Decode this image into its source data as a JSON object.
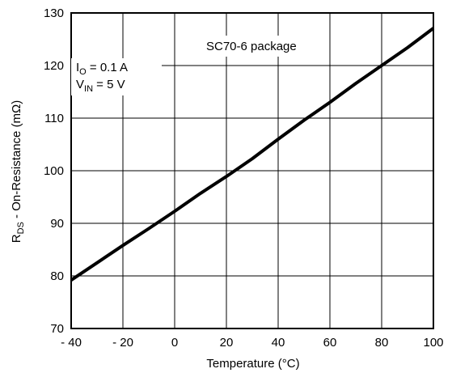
{
  "chart_data": {
    "type": "line",
    "title": "",
    "xlabel": "Temperature (°C)",
    "ylabel": {
      "prefix": "R",
      "sub": "DS",
      "suffix": " - On-Resistance (mΩ)"
    },
    "xlim": [
      -40,
      100
    ],
    "ylim": [
      70,
      130
    ],
    "xticks": [
      -40,
      -20,
      0,
      20,
      40,
      60,
      80,
      100
    ],
    "xtick_labels": [
      "- 40",
      "- 20",
      "0",
      "20",
      "40",
      "60",
      "80",
      "100"
    ],
    "yticks": [
      70,
      80,
      90,
      100,
      110,
      120,
      130
    ],
    "ytick_labels": [
      "70",
      "80",
      "90",
      "100",
      "110",
      "120",
      "130"
    ],
    "grid": true,
    "legend": "none",
    "annotations": {
      "package": "SC70-6 package",
      "io": {
        "prefix": "I",
        "sub": "O",
        "suffix": " = 0.1 A"
      },
      "vin": {
        "prefix": "V",
        "sub": "IN",
        "suffix": " = 5 V"
      }
    },
    "series": [
      {
        "x": [
          -40,
          -30,
          -20,
          -10,
          0,
          10,
          20,
          30,
          40,
          50,
          60,
          70,
          80,
          90,
          100
        ],
        "y": [
          79.2,
          82.5,
          85.8,
          89.0,
          92.3,
          95.7,
          98.9,
          102.3,
          106.0,
          109.6,
          113.0,
          116.6,
          120.0,
          123.4,
          127.1
        ]
      }
    ],
    "line_color": "#000000"
  }
}
